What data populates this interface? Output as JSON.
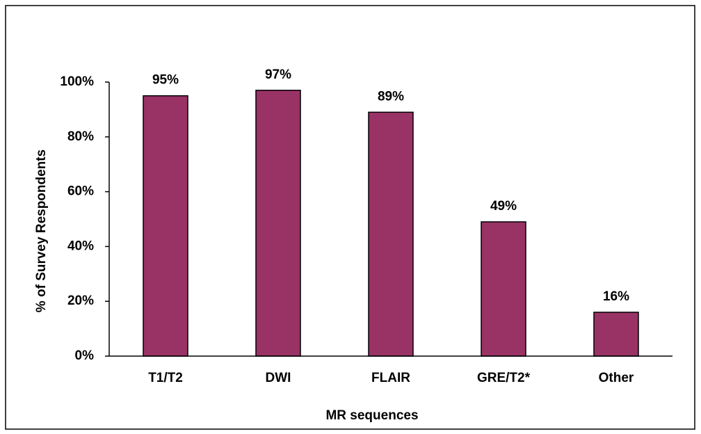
{
  "chart_data": {
    "type": "bar",
    "xlabel": "MR sequences",
    "ylabel": "% of Survey Respondents",
    "categories": [
      "T1/T2",
      "DWI",
      "FLAIR",
      "GRE/T2*",
      "Other"
    ],
    "values": [
      95,
      97,
      89,
      49,
      16
    ],
    "value_labels": [
      "95%",
      "97%",
      "89%",
      "49%",
      "16%"
    ],
    "color": "#993366",
    "ylim": [
      0,
      100
    ],
    "yticks": [
      {
        "value": 0,
        "label": "0%"
      },
      {
        "value": 20,
        "label": "20%"
      },
      {
        "value": 40,
        "label": "40%"
      },
      {
        "value": 60,
        "label": "60%"
      },
      {
        "value": 80,
        "label": "80%"
      },
      {
        "value": 100,
        "label": "100%"
      }
    ],
    "grid": false
  }
}
